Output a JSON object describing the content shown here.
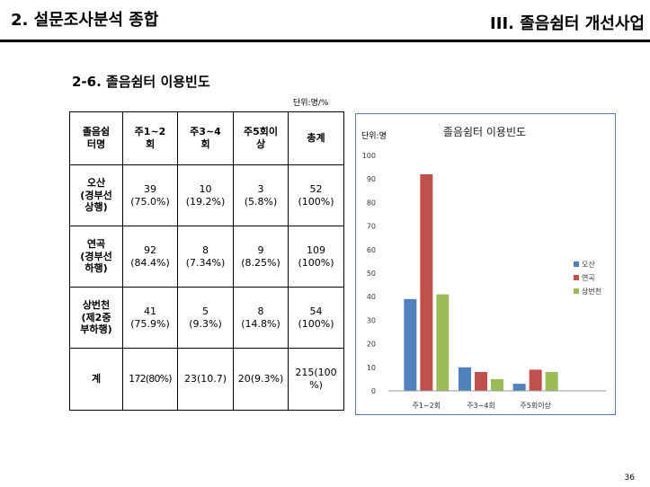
{
  "header": {
    "left_title": "2. 설문조사분석 종합",
    "right_title": "III. 졸음쉼터 개선사업"
  },
  "section_title": "2-6. 졸음쉼터 이용빈도",
  "unit_note": "단위:명/%",
  "table": {
    "headers": [
      [
        "졸음쉼",
        "터명"
      ],
      [
        "주1~2",
        "회"
      ],
      [
        "주3~4",
        "회"
      ],
      [
        "주5회이",
        "상"
      ],
      [
        "총계"
      ]
    ],
    "rows": [
      {
        "name": [
          "오산",
          "(경부선",
          "상행)"
        ],
        "cells": [
          [
            "39",
            "(75.0%)"
          ],
          [
            "10",
            "(19.2%)"
          ],
          [
            "3",
            "(5.8%)"
          ],
          [
            "52",
            "(100%)"
          ]
        ]
      },
      {
        "name": [
          "연곡",
          "(경부선",
          "하행)"
        ],
        "cells": [
          [
            "92",
            "(84.4%)"
          ],
          [
            "8",
            "(7.34%)"
          ],
          [
            "9",
            "(8.25%)"
          ],
          [
            "109",
            "(100%)"
          ]
        ]
      },
      {
        "name": [
          "상번천",
          "(제2중",
          "부하행)"
        ],
        "cells": [
          [
            "41",
            "(75.9%)"
          ],
          [
            "5",
            "(9.3%)"
          ],
          [
            "8",
            "(14.8%)"
          ],
          [
            "54",
            "(100%)"
          ]
        ]
      }
    ],
    "total_row": {
      "name": "계",
      "cells": [
        [
          "172(80%)"
        ],
        [
          "23(10.7)"
        ],
        [
          "20(9.3%)"
        ],
        [
          "215(100",
          "%)"
        ]
      ]
    }
  },
  "chart_data": {
    "type": "bar",
    "title": "졸음쉼터 이용빈도",
    "ylabel": "단위:명",
    "categories": [
      "주1~2회",
      "주3~4회",
      "주5회이상"
    ],
    "series": [
      {
        "name": "오산",
        "values": [
          39,
          10,
          3
        ],
        "color": "#4f81bd"
      },
      {
        "name": "연곡",
        "values": [
          92,
          8,
          9
        ],
        "color": "#c0504d"
      },
      {
        "name": "상번천",
        "values": [
          41,
          5,
          8
        ],
        "color": "#9bbb59"
      }
    ],
    "ylim": [
      0,
      100
    ],
    "yticks": [
      0,
      10,
      20,
      30,
      40,
      50,
      60,
      70,
      80,
      90,
      100
    ],
    "grid": false,
    "legend": "right"
  },
  "page_number": "36"
}
